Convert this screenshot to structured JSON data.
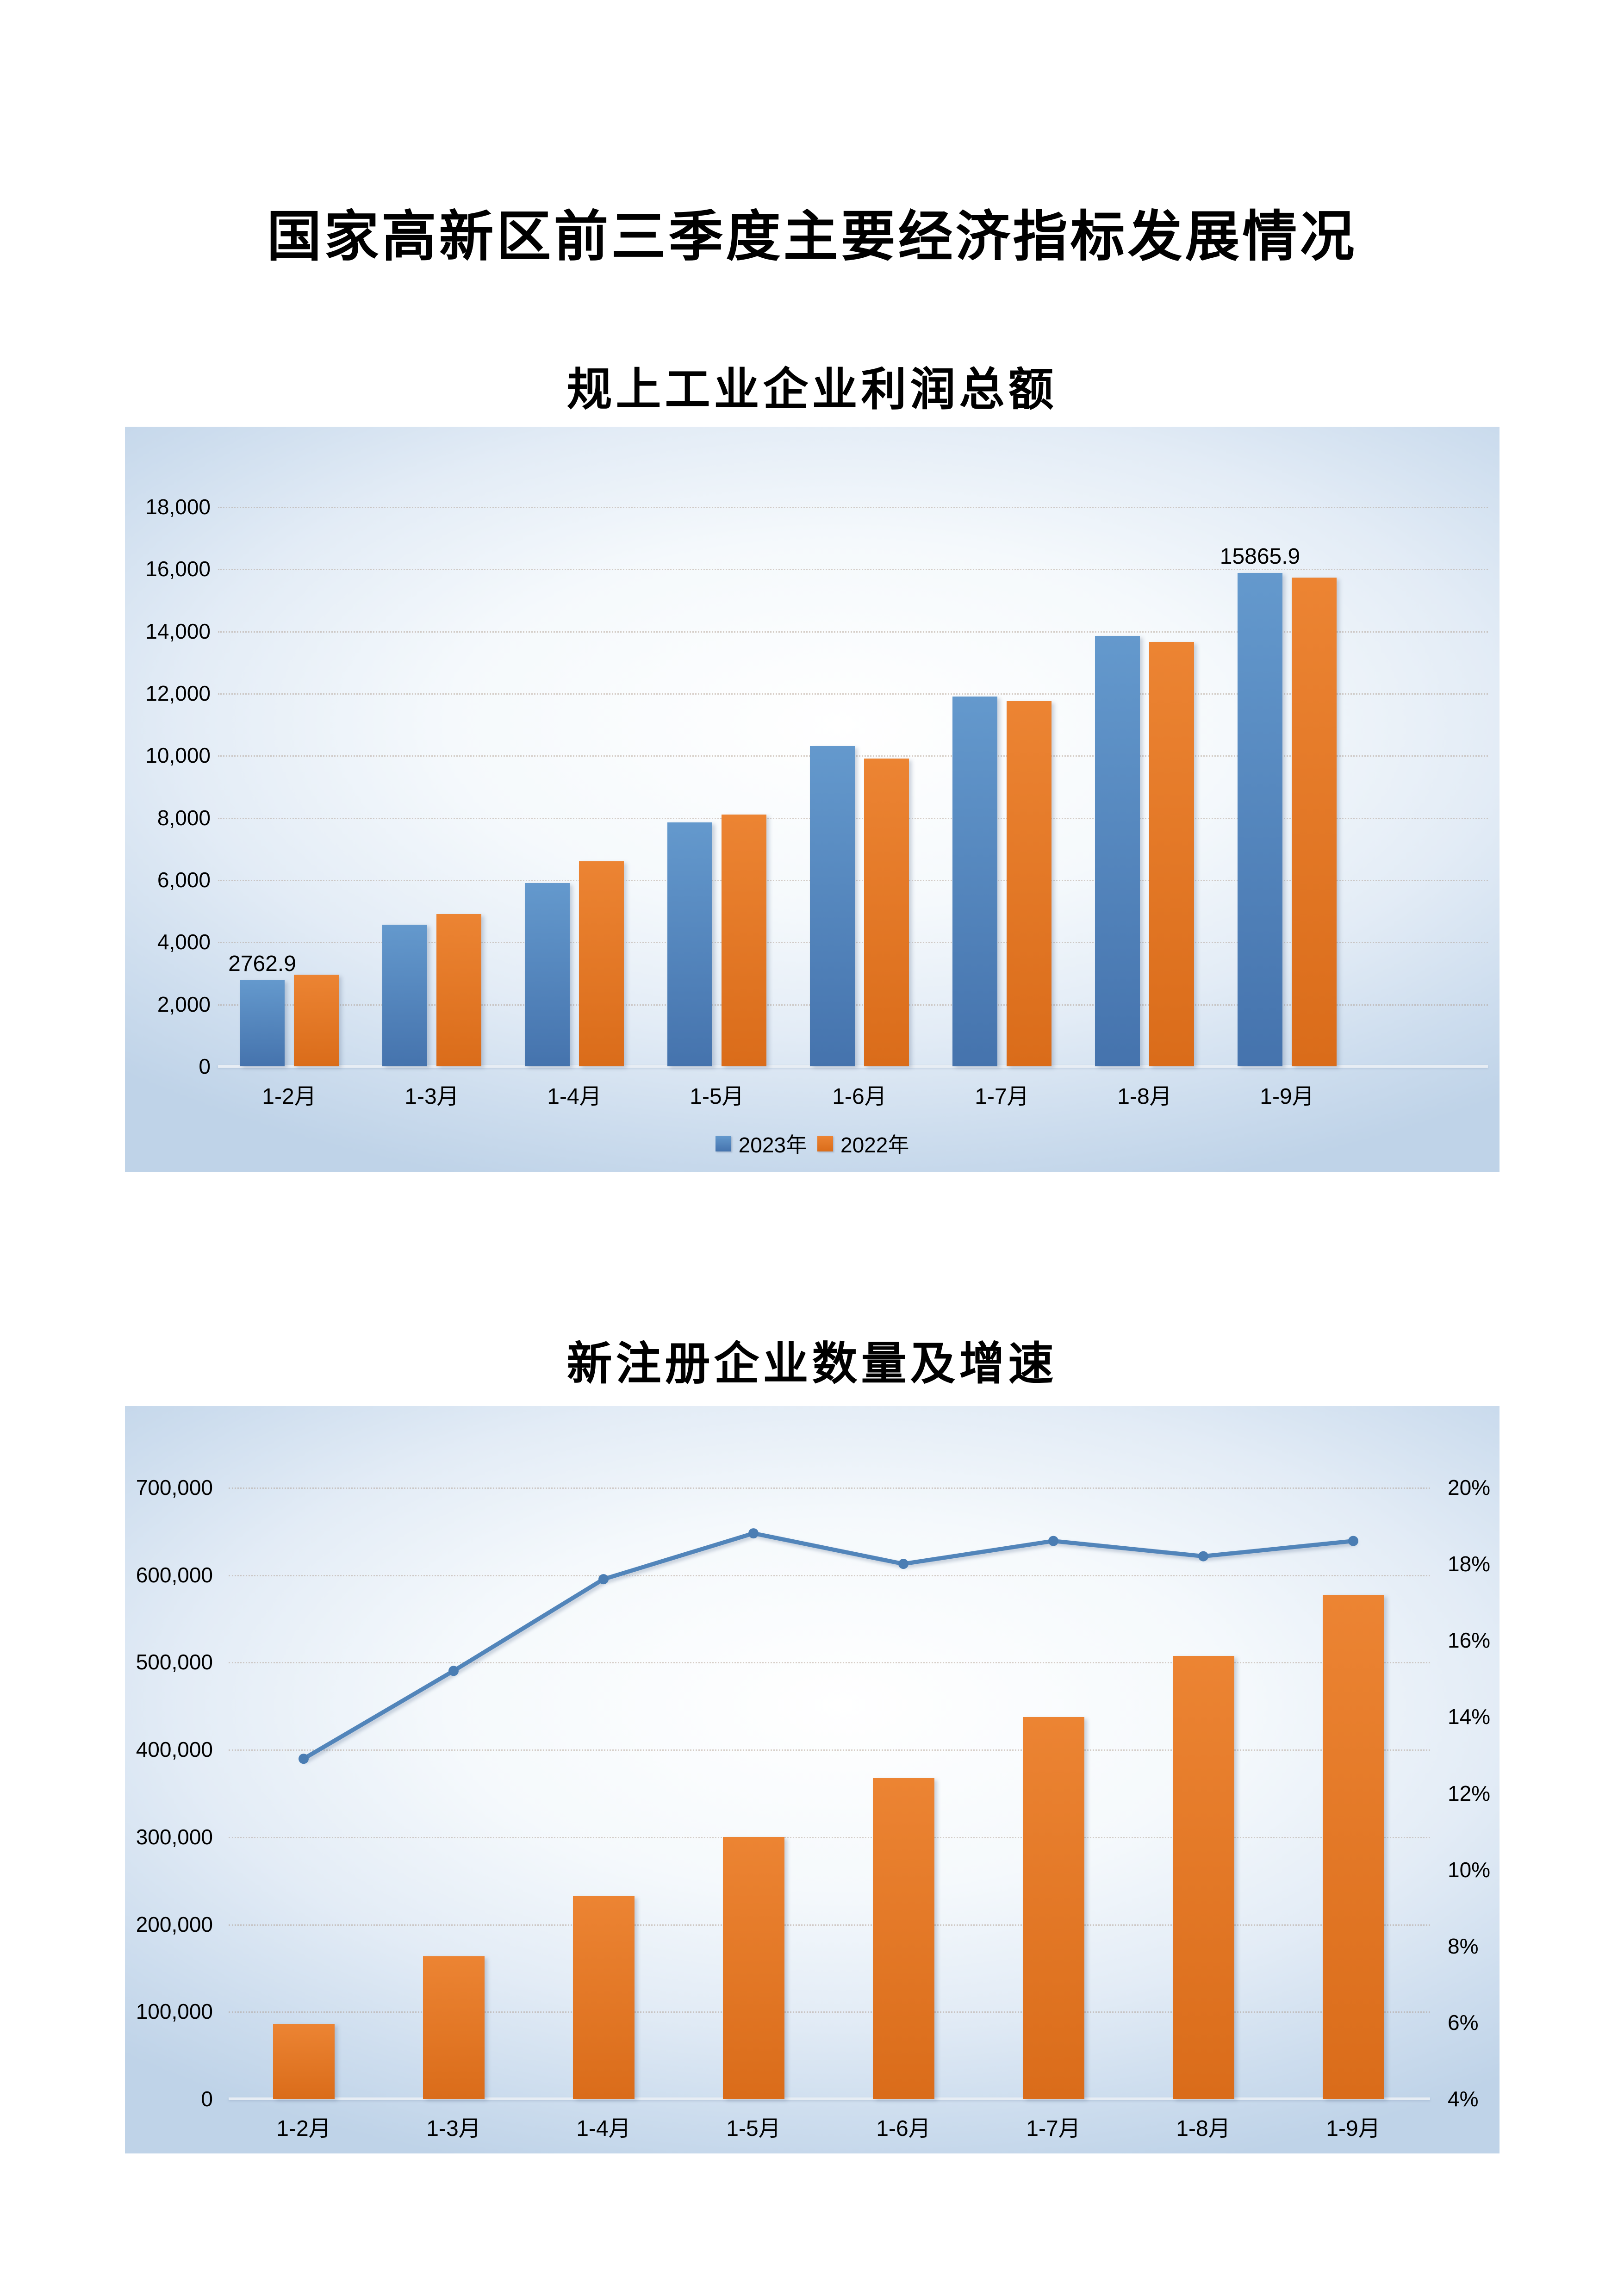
{
  "page": {
    "title": "国家高新区前三季度主要经济指标发展情况"
  },
  "chart_data": [
    {
      "type": "bar",
      "title": "规上工业企业利润总额",
      "categories": [
        "1-2月",
        "1-3月",
        "1-4月",
        "1-5月",
        "1-6月",
        "1-7月",
        "1-8月",
        "1-9月"
      ],
      "series": [
        {
          "name": "2023年",
          "color": "#4f81bd",
          "color_top": "#6499cd",
          "color_bottom": "#4573ad",
          "values": [
            2762.9,
            4550,
            5900,
            7850,
            10300,
            11900,
            13850,
            15865.9
          ]
        },
        {
          "name": "2022年",
          "color": "#e4771f",
          "color_top": "#ec8433",
          "color_bottom": "#da6c1a",
          "values": [
            2950,
            4900,
            6600,
            8100,
            9900,
            11750,
            13650,
            15720
          ]
        }
      ],
      "y_axis": {
        "min": 0,
        "max": 18000,
        "step": 2000,
        "tick_labels": [
          "0",
          "2,000",
          "4,000",
          "6,000",
          "8,000",
          "10,000",
          "12,000",
          "14,000",
          "16,000",
          "18,000"
        ]
      },
      "data_labels": [
        {
          "series_index": 0,
          "category_index": 0,
          "text": "2762.9"
        },
        {
          "series_index": 0,
          "category_index": 7,
          "text": "15865.9"
        }
      ],
      "legend": {
        "position": "bottom",
        "items": [
          "2023年",
          "2022年"
        ]
      },
      "grid": "horizontal-dotted"
    },
    {
      "type": "bar-line-combo",
      "title": "新注册企业数量及增速",
      "categories": [
        "1-2月",
        "1-3月",
        "1-4月",
        "1-5月",
        "1-6月",
        "1-7月",
        "1-8月",
        "1-9月"
      ],
      "bar_series": {
        "axis": "left",
        "color": "#e4771f",
        "color_top": "#ec8433",
        "color_bottom": "#da6c1a",
        "values": [
          86000,
          163000,
          232000,
          300000,
          367000,
          437000,
          507000,
          577000
        ]
      },
      "line_series": {
        "axis": "right",
        "color": "#5285ba",
        "marker_color": "#4a7db3",
        "values_percent": [
          12.9,
          15.2,
          17.6,
          18.8,
          18.0,
          18.6,
          18.2,
          18.6
        ]
      },
      "left_axis": {
        "min": 0,
        "max": 700000,
        "step": 100000,
        "tick_labels": [
          "0",
          "100,000",
          "200,000",
          "300,000",
          "400,000",
          "500,000",
          "600,000",
          "700,000"
        ]
      },
      "right_axis": {
        "min": 4,
        "max": 20,
        "step": 2,
        "tick_labels": [
          "4%",
          "6%",
          "8%",
          "10%",
          "12%",
          "14%",
          "16%",
          "18%",
          "20%"
        ]
      },
      "legend": {
        "position": "none",
        "items": []
      },
      "grid": "horizontal-dotted"
    }
  ]
}
